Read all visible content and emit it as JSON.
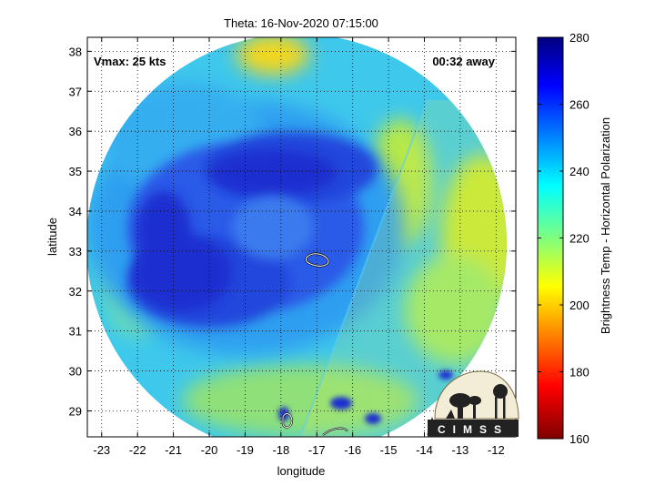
{
  "title": "Theta: 16-Nov-2020 07:15:00",
  "vmax_label": "Vmax: 25 kts",
  "time_label": "00:32 away",
  "xaxis": {
    "label": "longitude",
    "ticks": [
      "-23",
      "-22",
      "-21",
      "-20",
      "-19",
      "-18",
      "-17",
      "-16",
      "-15",
      "-14",
      "-13",
      "-12"
    ],
    "range": [
      -23.4,
      -11.45
    ]
  },
  "yaxis": {
    "label": "latitude",
    "ticks": [
      "29",
      "30",
      "31",
      "32",
      "33",
      "34",
      "35",
      "36",
      "37",
      "38"
    ],
    "range": [
      28.35,
      38.35
    ]
  },
  "colorbar": {
    "label": "Brightness Temp - Horizontal Polarization",
    "ticks": [
      "280",
      "260",
      "240",
      "220",
      "200",
      "180",
      "160"
    ],
    "range": [
      160,
      280
    ]
  },
  "logo": {
    "text": "CIMSS"
  },
  "colors": {
    "core": "#1c2fd0",
    "inner": "#2a5ae8",
    "mid": "#2f9ff0",
    "outer": "#3ec8ec",
    "edge": "#6fe0b0",
    "warm": "#c9e832",
    "hot": "#f3d71a"
  }
}
